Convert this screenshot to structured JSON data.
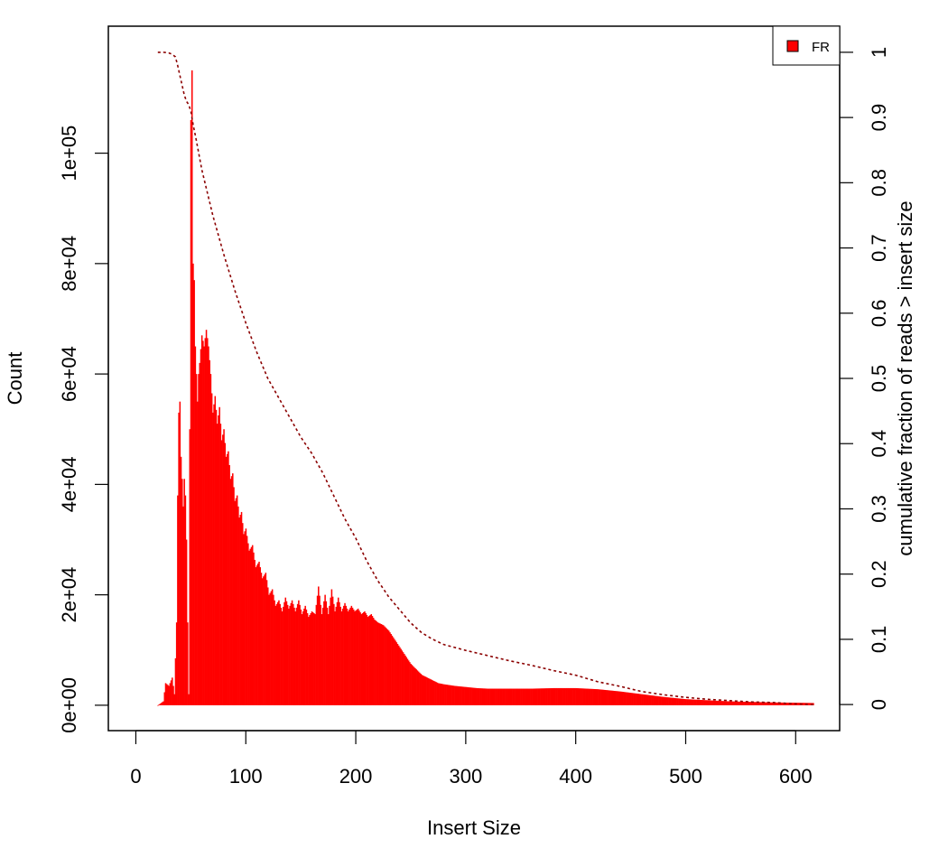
{
  "chart_data": {
    "type": "bar",
    "xlabel": "Insert Size",
    "ylabel": "Count",
    "y2label": "cumulative fraction of reads > insert size",
    "xlim": [
      -25,
      640
    ],
    "ylim": [
      -4600,
      123000
    ],
    "y2lim": [
      -0.04,
      1.04
    ],
    "xticks": [
      0,
      100,
      200,
      300,
      400,
      500,
      600
    ],
    "xtick_labels": [
      "0",
      "100",
      "200",
      "300",
      "400",
      "500",
      "600"
    ],
    "yticks": [
      0,
      20000,
      40000,
      60000,
      80000,
      100000
    ],
    "ytick_labels": [
      "0e+00",
      "2e+04",
      "4e+04",
      "6e+04",
      "8e+04",
      "1e+05"
    ],
    "y2ticks": [
      0,
      0.1,
      0.2,
      0.3,
      0.4,
      0.5,
      0.6,
      0.7,
      0.8,
      0.9,
      1
    ],
    "y2tick_labels": [
      "0",
      "0.1",
      "0.2",
      "0.3",
      "0.4",
      "0.5",
      "0.6",
      "0.7",
      "0.8",
      "0.9",
      "1"
    ],
    "legend": {
      "position": "top-right",
      "entries": [
        {
          "label": "FR",
          "color": "#ff0000"
        }
      ]
    },
    "colors": {
      "bars": "#ff0000",
      "cumulative": "#8b0000"
    },
    "series": [
      {
        "name": "FR",
        "kind": "histogram",
        "points": [
          [
            20,
            0
          ],
          [
            25,
            700
          ],
          [
            27,
            4000
          ],
          [
            30,
            3500
          ],
          [
            33,
            5000
          ],
          [
            35,
            2000
          ],
          [
            37,
            15000
          ],
          [
            38,
            38000
          ],
          [
            39,
            53000
          ],
          [
            40,
            55000
          ],
          [
            41,
            45000
          ],
          [
            42,
            41000
          ],
          [
            43,
            36000
          ],
          [
            44,
            41000
          ],
          [
            45,
            38000
          ],
          [
            46,
            30000
          ],
          [
            47,
            15000
          ],
          [
            48,
            2000
          ],
          [
            49,
            50000
          ],
          [
            50,
            106000
          ],
          [
            51,
            115000
          ],
          [
            52,
            80000
          ],
          [
            53,
            77000
          ],
          [
            54,
            65000
          ],
          [
            55,
            60000
          ],
          [
            56,
            55000
          ],
          [
            57,
            60000
          ],
          [
            58,
            62000
          ],
          [
            60,
            67000
          ],
          [
            62,
            65000
          ],
          [
            64,
            68000
          ],
          [
            66,
            65000
          ],
          [
            68,
            60000
          ],
          [
            70,
            53000
          ],
          [
            72,
            56000
          ],
          [
            74,
            51000
          ],
          [
            76,
            54000
          ],
          [
            78,
            48000
          ],
          [
            80,
            50000
          ],
          [
            82,
            45000
          ],
          [
            84,
            46000
          ],
          [
            86,
            41000
          ],
          [
            88,
            42000
          ],
          [
            90,
            37000
          ],
          [
            92,
            38000
          ],
          [
            94,
            34000
          ],
          [
            96,
            35000
          ],
          [
            98,
            31000
          ],
          [
            100,
            32000
          ],
          [
            103,
            28000
          ],
          [
            106,
            29000
          ],
          [
            109,
            25000
          ],
          [
            112,
            26000
          ],
          [
            115,
            23000
          ],
          [
            118,
            24000
          ],
          [
            121,
            20000
          ],
          [
            124,
            21000
          ],
          [
            127,
            18000
          ],
          [
            130,
            19000
          ],
          [
            133,
            17000
          ],
          [
            136,
            19500
          ],
          [
            139,
            17500
          ],
          [
            142,
            19000
          ],
          [
            145,
            17000
          ],
          [
            148,
            19000
          ],
          [
            151,
            16500
          ],
          [
            154,
            18000
          ],
          [
            157,
            16000
          ],
          [
            160,
            17000
          ],
          [
            163,
            16500
          ],
          [
            166,
            21500
          ],
          [
            169,
            16500
          ],
          [
            172,
            20000
          ],
          [
            175,
            16500
          ],
          [
            178,
            21000
          ],
          [
            181,
            17000
          ],
          [
            184,
            19500
          ],
          [
            187,
            17000
          ],
          [
            190,
            18500
          ],
          [
            193,
            17000
          ],
          [
            196,
            18000
          ],
          [
            199,
            17000
          ],
          [
            202,
            17500
          ],
          [
            205,
            16500
          ],
          [
            208,
            17000
          ],
          [
            211,
            16000
          ],
          [
            214,
            16500
          ],
          [
            217,
            15500
          ],
          [
            220,
            15000
          ],
          [
            225,
            14500
          ],
          [
            230,
            13500
          ],
          [
            235,
            12000
          ],
          [
            240,
            10500
          ],
          [
            245,
            9000
          ],
          [
            250,
            7500
          ],
          [
            255,
            6500
          ],
          [
            260,
            5500
          ],
          [
            265,
            5000
          ],
          [
            270,
            4500
          ],
          [
            275,
            4000
          ],
          [
            280,
            3800
          ],
          [
            290,
            3500
          ],
          [
            300,
            3300
          ],
          [
            310,
            3100
          ],
          [
            320,
            3000
          ],
          [
            340,
            3000
          ],
          [
            360,
            3000
          ],
          [
            380,
            3100
          ],
          [
            400,
            3100
          ],
          [
            420,
            2900
          ],
          [
            440,
            2500
          ],
          [
            460,
            2000
          ],
          [
            480,
            1500
          ],
          [
            500,
            1100
          ],
          [
            520,
            900
          ],
          [
            540,
            700
          ],
          [
            560,
            600
          ],
          [
            580,
            500
          ],
          [
            600,
            450
          ],
          [
            616,
            400
          ]
        ]
      },
      {
        "name": "cumulative",
        "kind": "cumulative",
        "points": [
          [
            20,
            1.0
          ],
          [
            25,
            1.0
          ],
          [
            30,
            0.999
          ],
          [
            33,
            0.997
          ],
          [
            36,
            0.993
          ],
          [
            38,
            0.98
          ],
          [
            40,
            0.965
          ],
          [
            42,
            0.95
          ],
          [
            44,
            0.935
          ],
          [
            46,
            0.925
          ],
          [
            48,
            0.92
          ],
          [
            50,
            0.91
          ],
          [
            52,
            0.89
          ],
          [
            55,
            0.865
          ],
          [
            60,
            0.82
          ],
          [
            65,
            0.785
          ],
          [
            70,
            0.75
          ],
          [
            80,
            0.69
          ],
          [
            90,
            0.635
          ],
          [
            100,
            0.585
          ],
          [
            110,
            0.54
          ],
          [
            120,
            0.5
          ],
          [
            130,
            0.47
          ],
          [
            140,
            0.44
          ],
          [
            150,
            0.41
          ],
          [
            160,
            0.385
          ],
          [
            170,
            0.355
          ],
          [
            180,
            0.32
          ],
          [
            190,
            0.285
          ],
          [
            200,
            0.255
          ],
          [
            210,
            0.22
          ],
          [
            220,
            0.19
          ],
          [
            230,
            0.165
          ],
          [
            240,
            0.145
          ],
          [
            250,
            0.125
          ],
          [
            260,
            0.11
          ],
          [
            270,
            0.1
          ],
          [
            280,
            0.092
          ],
          [
            300,
            0.083
          ],
          [
            320,
            0.075
          ],
          [
            340,
            0.067
          ],
          [
            360,
            0.06
          ],
          [
            380,
            0.052
          ],
          [
            400,
            0.045
          ],
          [
            420,
            0.035
          ],
          [
            440,
            0.028
          ],
          [
            460,
            0.02
          ],
          [
            480,
            0.015
          ],
          [
            500,
            0.011
          ],
          [
            520,
            0.008
          ],
          [
            540,
            0.006
          ],
          [
            560,
            0.004
          ],
          [
            580,
            0.003
          ],
          [
            600,
            0.001
          ],
          [
            616,
            0.0
          ]
        ]
      }
    ]
  }
}
